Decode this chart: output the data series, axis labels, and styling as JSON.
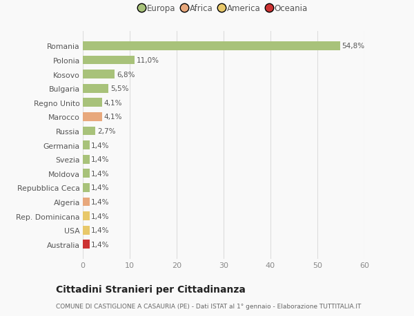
{
  "countries": [
    "Romania",
    "Polonia",
    "Kosovo",
    "Bulgaria",
    "Regno Unito",
    "Marocco",
    "Russia",
    "Germania",
    "Svezia",
    "Moldova",
    "Repubblica Ceca",
    "Algeria",
    "Rep. Dominicana",
    "USA",
    "Australia"
  ],
  "values": [
    54.8,
    11.0,
    6.8,
    5.5,
    4.1,
    4.1,
    2.7,
    1.4,
    1.4,
    1.4,
    1.4,
    1.4,
    1.4,
    1.4,
    1.4
  ],
  "labels": [
    "54,8%",
    "11,0%",
    "6,8%",
    "5,5%",
    "4,1%",
    "4,1%",
    "2,7%",
    "1,4%",
    "1,4%",
    "1,4%",
    "1,4%",
    "1,4%",
    "1,4%",
    "1,4%",
    "1,4%"
  ],
  "colors": [
    "#a8c27a",
    "#a8c27a",
    "#a8c27a",
    "#a8c27a",
    "#a8c27a",
    "#e8a87c",
    "#a8c27a",
    "#a8c27a",
    "#a8c27a",
    "#a8c27a",
    "#a8c27a",
    "#e8a87c",
    "#e8c86a",
    "#e8c86a",
    "#cc3333"
  ],
  "legend_labels": [
    "Europa",
    "Africa",
    "America",
    "Oceania"
  ],
  "legend_colors": [
    "#a8c27a",
    "#e8a87c",
    "#e8c86a",
    "#cc3333"
  ],
  "xlim": [
    0,
    60
  ],
  "xticks": [
    0,
    10,
    20,
    30,
    40,
    50,
    60
  ],
  "title": "Cittadini Stranieri per Cittadinanza",
  "subtitle": "COMUNE DI CASTIGLIONE A CASAURIA (PE) - Dati ISTAT al 1° gennaio - Elaborazione TUTTITALIA.IT",
  "bg_color": "#f9f9f9",
  "grid_color": "#dddddd"
}
